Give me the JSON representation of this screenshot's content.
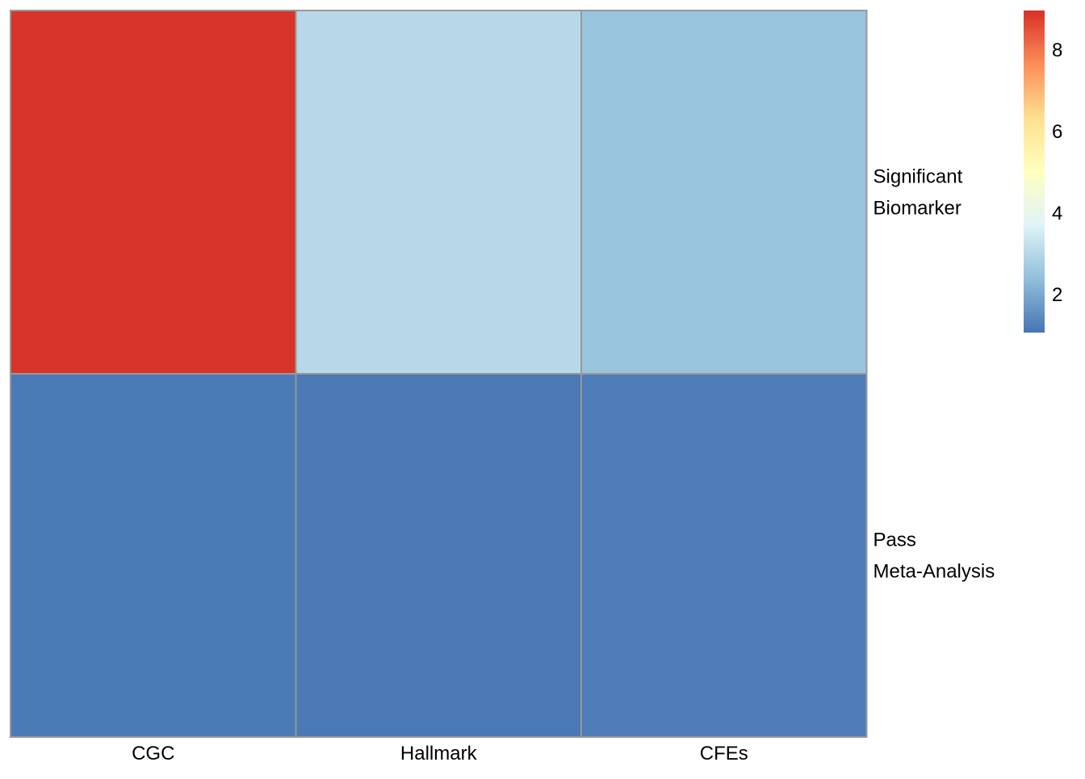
{
  "chart_data": {
    "type": "heatmap",
    "columns": [
      "CGC",
      "Hallmark",
      "CFEs"
    ],
    "rows": [
      {
        "label_lines": [
          "Significant",
          "Biomarker"
        ],
        "values": [
          8.9,
          3.0,
          2.5
        ]
      },
      {
        "label_lines": [
          "Pass",
          "Meta-Analysis"
        ],
        "values": [
          1.15,
          1.13,
          1.2
        ]
      }
    ],
    "cell_border_color": "#999999",
    "legend": {
      "placement": "right",
      "min": 1.05,
      "max": 8.95,
      "ticks": [
        2,
        4,
        6,
        8
      ],
      "colors": [
        "#4575B4",
        "#91BFDB",
        "#E0F3F8",
        "#FFFFBF",
        "#FEE090",
        "#FC8D59",
        "#D73027"
      ]
    }
  }
}
